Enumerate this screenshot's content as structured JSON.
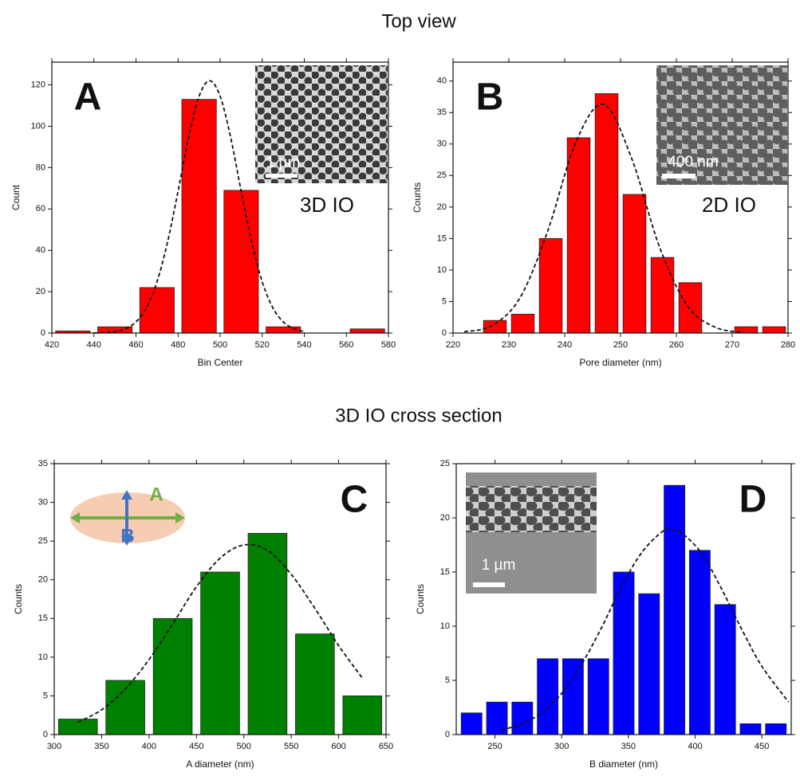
{
  "headings": [
    "Top view",
    "3D IO cross section"
  ],
  "chart_data": [
    {
      "type": "histogram",
      "panel_label": "A",
      "xlabel": "Bin Center",
      "ylabel": "Count",
      "bins": [
        420,
        440,
        460,
        480,
        500,
        520,
        540,
        560,
        580
      ],
      "counts": [
        1,
        3,
        22,
        113,
        69,
        3,
        0,
        2
      ],
      "color": "#ff0000",
      "xlim": [
        420,
        580
      ],
      "ylim": [
        0,
        131
      ],
      "xticks": [
        420,
        440,
        460,
        480,
        500,
        520,
        540,
        560,
        580
      ],
      "yticks": [
        0,
        20,
        40,
        60,
        80,
        100,
        120
      ],
      "fit": {
        "x": [
          440,
          445,
          450,
          455,
          460,
          465,
          470,
          475,
          480,
          485,
          490,
          495,
          500,
          505,
          510,
          515,
          520,
          525,
          530,
          535,
          540
        ],
        "values": [
          0.05,
          0.2,
          0.7,
          2.1,
          5.4,
          12.3,
          24.8,
          44,
          68.6,
          94.6,
          114.5,
          122,
          114.5,
          94.6,
          68.6,
          44,
          24.8,
          12.3,
          5.4,
          2.1,
          0.7
        ]
      },
      "inset_scale_label": "1 µm",
      "sample_label": "3D IO"
    },
    {
      "type": "histogram",
      "panel_label": "B",
      "xlabel": "Pore diameter (nm)",
      "ylabel": "Counts",
      "bins": [
        225,
        230,
        235,
        240,
        245,
        250,
        255,
        260,
        265,
        270,
        275,
        280
      ],
      "counts": [
        2,
        3,
        15,
        31,
        38,
        22,
        12,
        8,
        0,
        1,
        1
      ],
      "color": "#ff0000",
      "xlim": [
        220,
        280
      ],
      "ylim": [
        0,
        43
      ],
      "xticks": [
        220,
        230,
        240,
        250,
        260,
        270,
        280
      ],
      "yticks": [
        0,
        5,
        10,
        15,
        20,
        25,
        30,
        35,
        40
      ],
      "fit": {
        "x": [
          222,
          227,
          232,
          237,
          242,
          247,
          252,
          257,
          262,
          267,
          272
        ],
        "values": [
          0.2,
          1.2,
          5.6,
          16.3,
          30.3,
          36.3,
          27.7,
          13.6,
          4.3,
          0.9,
          0.1
        ]
      },
      "inset_scale_label": "400 nm",
      "sample_label": "2D IO"
    },
    {
      "type": "histogram",
      "panel_label": "C",
      "xlabel": "A diameter (nm)",
      "ylabel": "Counts",
      "bins": [
        300,
        350,
        400,
        450,
        500,
        550,
        600,
        650
      ],
      "counts": [
        2,
        7,
        15,
        21,
        26,
        13,
        5
      ],
      "color": "#008000",
      "xlim": [
        300,
        650
      ],
      "ylim": [
        0,
        35
      ],
      "xticks": [
        300,
        350,
        400,
        450,
        500,
        550,
        600,
        650
      ],
      "yticks": [
        0,
        5,
        10,
        15,
        20,
        25,
        30,
        35
      ],
      "fit": {
        "x": [
          325,
          350,
          375,
          400,
          425,
          450,
          475,
          500,
          525,
          550,
          575,
          600,
          625
        ],
        "values": [
          1.6,
          3.2,
          5.9,
          9.7,
          14.3,
          19.1,
          22.8,
          24.5,
          23.8,
          20.7,
          16.3,
          11.5,
          7.3
        ]
      },
      "diagram_labels": [
        "A",
        "B"
      ]
    },
    {
      "type": "histogram",
      "panel_label": "D",
      "xlabel": "B diameter (nm)",
      "ylabel": "Counts",
      "bins": [
        223,
        242,
        261,
        280,
        299,
        318,
        337,
        356,
        375,
        394,
        413,
        432,
        451,
        470
      ],
      "counts": [
        2,
        3,
        3,
        7,
        7,
        7,
        15,
        13,
        23,
        17,
        12,
        1,
        1
      ],
      "color": "#0000ff",
      "xlim": [
        221,
        472
      ],
      "ylim": [
        0,
        25
      ],
      "xticks": [
        250,
        300,
        350,
        400,
        450
      ],
      "yticks": [
        0,
        5,
        10,
        15,
        20,
        25
      ],
      "fit": {
        "x": [
          255,
          270,
          285,
          300,
          315,
          330,
          345,
          360,
          375,
          382,
          390,
          405,
          420,
          435,
          450,
          470
        ],
        "values": [
          0.4,
          1.0,
          2.0,
          3.8,
          6.5,
          9.9,
          13.7,
          16.8,
          18.7,
          18.9,
          18.6,
          16.7,
          13.4,
          9.7,
          6.3,
          3.0
        ]
      },
      "inset_scale_label": "1 µm"
    }
  ]
}
